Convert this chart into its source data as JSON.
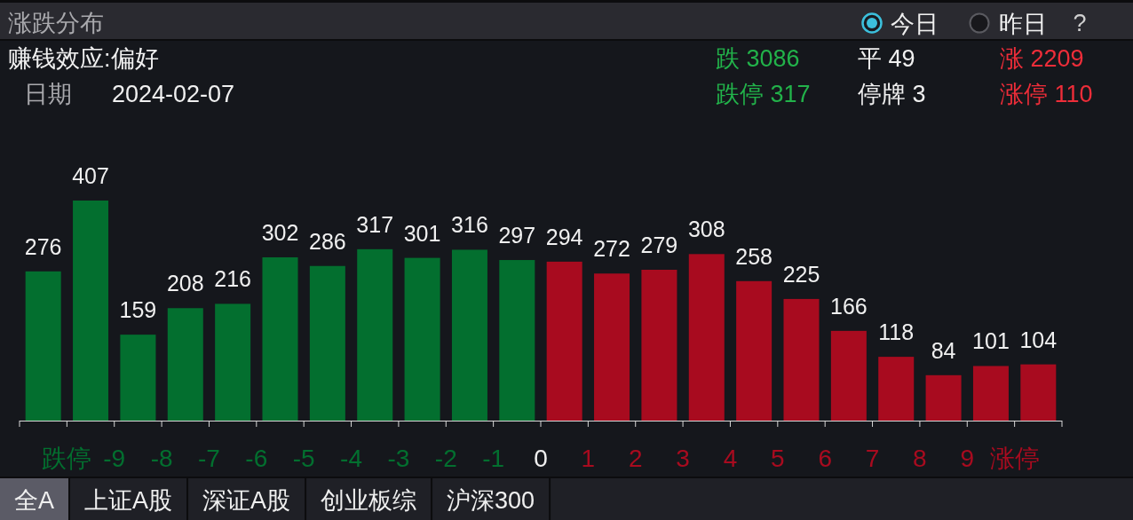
{
  "chart_data": {
    "type": "bar",
    "title": "涨跌分布",
    "x": [
      -10.5,
      -9.5,
      -8.5,
      -7.5,
      -6.5,
      -5.5,
      -4.5,
      -3.5,
      -2.5,
      -1.5,
      -0.5,
      0.5,
      1.5,
      2.5,
      3.5,
      4.5,
      5.5,
      6.5,
      7.5,
      8.5,
      9.5,
      10.5
    ],
    "values": [
      276,
      407,
      159,
      208,
      216,
      302,
      286,
      317,
      301,
      316,
      297,
      294,
      272,
      279,
      308,
      258,
      225,
      166,
      118,
      84,
      101,
      104
    ],
    "colors": [
      "#036f2f",
      "#036f2f",
      "#036f2f",
      "#036f2f",
      "#036f2f",
      "#036f2f",
      "#036f2f",
      "#036f2f",
      "#036f2f",
      "#036f2f",
      "#036f2f",
      "#a80b1f",
      "#a80b1f",
      "#a80b1f",
      "#a80b1f",
      "#a80b1f",
      "#a80b1f",
      "#a80b1f",
      "#a80b1f",
      "#a80b1f",
      "#a80b1f",
      "#a80b1f"
    ],
    "xlim": [
      -11,
      11
    ],
    "xticks": [
      {
        "value": -11,
        "label": null
      },
      {
        "value": -10,
        "label": "跌停"
      },
      -9,
      -8,
      -7,
      -6,
      -5,
      -4,
      -3,
      -2,
      -1,
      0,
      1,
      2,
      3,
      4,
      5,
      6,
      7,
      8,
      9,
      {
        "value": 10,
        "label": "涨停"
      },
      {
        "value": 11,
        "label": null
      }
    ],
    "tick_labels": "x",
    "data_labels": true,
    "annotations": [
      "赚钱效应:偏好",
      "日期",
      "2024-02-07",
      "跌 3086",
      "平 49",
      "涨 2209",
      "跌停 317",
      "停牌 3",
      "涨停 110",
      "今日",
      "昨日",
      "?",
      "全A",
      "上证A股",
      "深证A股",
      "创业板综",
      "沪深300"
    ]
  }
}
